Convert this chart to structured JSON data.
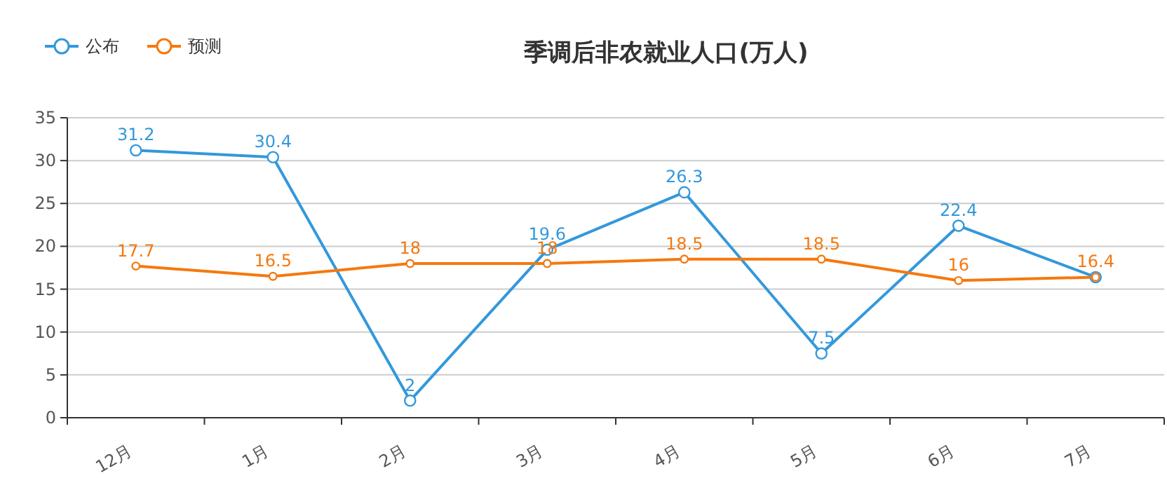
{
  "chart_data": {
    "type": "line",
    "title": "季调后非农就业人口(万人)",
    "categories": [
      "12月",
      "1月",
      "2月",
      "3月",
      "4月",
      "5月",
      "6月",
      "7月"
    ],
    "series": [
      {
        "name": "公布",
        "color": "#3398db",
        "values": [
          31.2,
          30.4,
          2,
          19.6,
          26.3,
          7.5,
          22.4,
          16.4
        ],
        "value_labels": [
          "31.2",
          "30.4",
          "2",
          "19.6",
          "26.3",
          "7.5",
          "22.4",
          null
        ]
      },
      {
        "name": "预测",
        "color": "#f5780f",
        "values": [
          17.7,
          16.5,
          18,
          18,
          18.5,
          18.5,
          16,
          16.4
        ]
      }
    ],
    "ylim": [
      0,
      35
    ],
    "yticks": [
      0,
      5,
      10,
      15,
      20,
      25,
      30,
      35
    ],
    "grid": "y",
    "legend": "top left",
    "marker": "circle",
    "line_style": "solid",
    "data_labels": true
  }
}
